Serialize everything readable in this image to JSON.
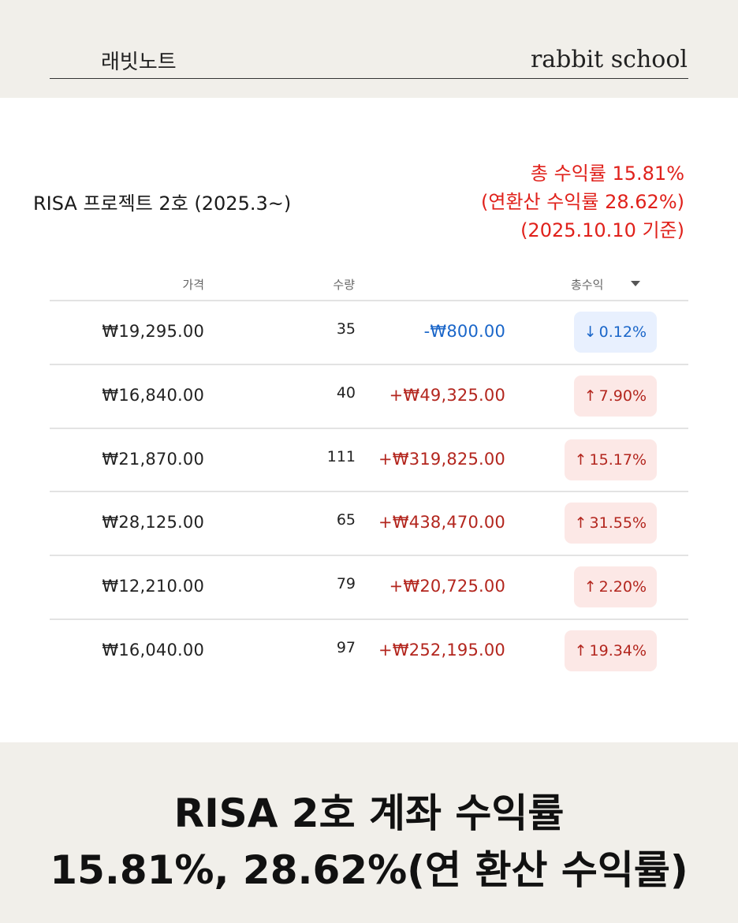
{
  "header": {
    "brand_ko": "래빗노트",
    "brand_en": "rabbit school"
  },
  "card": {
    "project_title": "RISA 프로젝트 2호 (2025.3~)",
    "summary": {
      "line1": "총 수익률 15.81%",
      "line2": "(연환산 수익률 28.62%)",
      "line3": "(2025.10.10 기준)"
    },
    "colors": {
      "summary": "#e0211b",
      "positive": "#b3261e",
      "negative": "#1a66c9"
    }
  },
  "table": {
    "headers": {
      "price": "가격",
      "qty": "수량",
      "total": "총수익"
    },
    "sort_icon": "sort-down-icon",
    "rows": [
      {
        "price": "₩19,295.00",
        "qty": "35",
        "gain": "-₩800.00",
        "pct": "0.12%",
        "dir": "down"
      },
      {
        "price": "₩16,840.00",
        "qty": "40",
        "gain": "+₩49,325.00",
        "pct": "7.90%",
        "dir": "up"
      },
      {
        "price": "₩21,870.00",
        "qty": "111",
        "gain": "+₩319,825.00",
        "pct": "15.17%",
        "dir": "up"
      },
      {
        "price": "₩28,125.00",
        "qty": "65",
        "gain": "+₩438,470.00",
        "pct": "31.55%",
        "dir": "up"
      },
      {
        "price": "₩12,210.00",
        "qty": "79",
        "gain": "+₩20,725.00",
        "pct": "2.20%",
        "dir": "up"
      },
      {
        "price": "₩16,040.00",
        "qty": "97",
        "gain": "+₩252,195.00",
        "pct": "19.34%",
        "dir": "up"
      }
    ]
  },
  "footer": {
    "line1": "RISA 2호 계좌 수익률",
    "line2": "15.81%, 28.62%(연 환산 수익률)"
  }
}
